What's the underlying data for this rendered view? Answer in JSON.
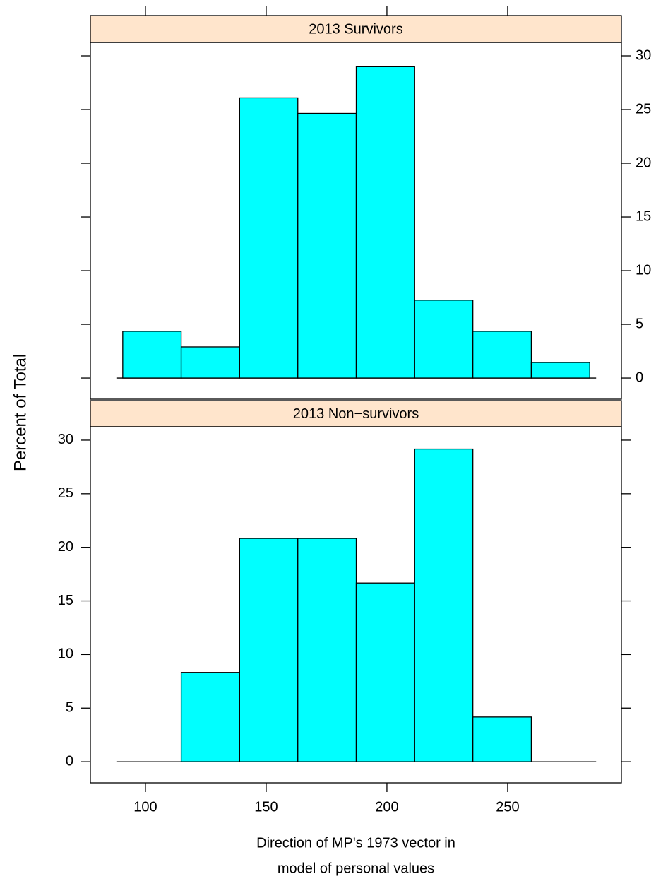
{
  "chart_data": [
    {
      "type": "histogram",
      "title": "2013 Survivors",
      "ylabel": "Percent of Total",
      "bins": [
        90.6,
        114.8,
        139.0,
        163.1,
        187.3,
        211.5,
        235.6,
        259.8,
        284.0
      ],
      "values": [
        4.35,
        2.9,
        26.09,
        24.64,
        28.99,
        7.25,
        4.35,
        1.45
      ],
      "color": "#00ffff",
      "strip_color": "#ffe5cc",
      "xlim": [
        77.2,
        297.1
      ],
      "ylim": [
        -1.97,
        31.25
      ],
      "yticks": [
        0,
        5,
        10,
        15,
        20,
        25,
        30
      ]
    },
    {
      "type": "histogram",
      "title": "2013 Non−survivors",
      "xlabel": [
        "Direction of MP's 1973 vector in",
        "model of personal values"
      ],
      "bins": [
        90.6,
        114.8,
        139.0,
        163.1,
        187.3,
        211.5,
        235.6,
        259.8,
        284.0
      ],
      "values": [
        0,
        8.33,
        20.83,
        20.83,
        16.67,
        29.17,
        4.17,
        0
      ],
      "color": "#00ffff",
      "strip_color": "#ffe5cc",
      "xlim": [
        77.2,
        297.1
      ],
      "ylim": [
        -1.97,
        31.25
      ],
      "yticks": [
        0,
        5,
        10,
        15,
        20,
        25,
        30
      ],
      "xticks": [
        100,
        150,
        200,
        250
      ]
    }
  ]
}
